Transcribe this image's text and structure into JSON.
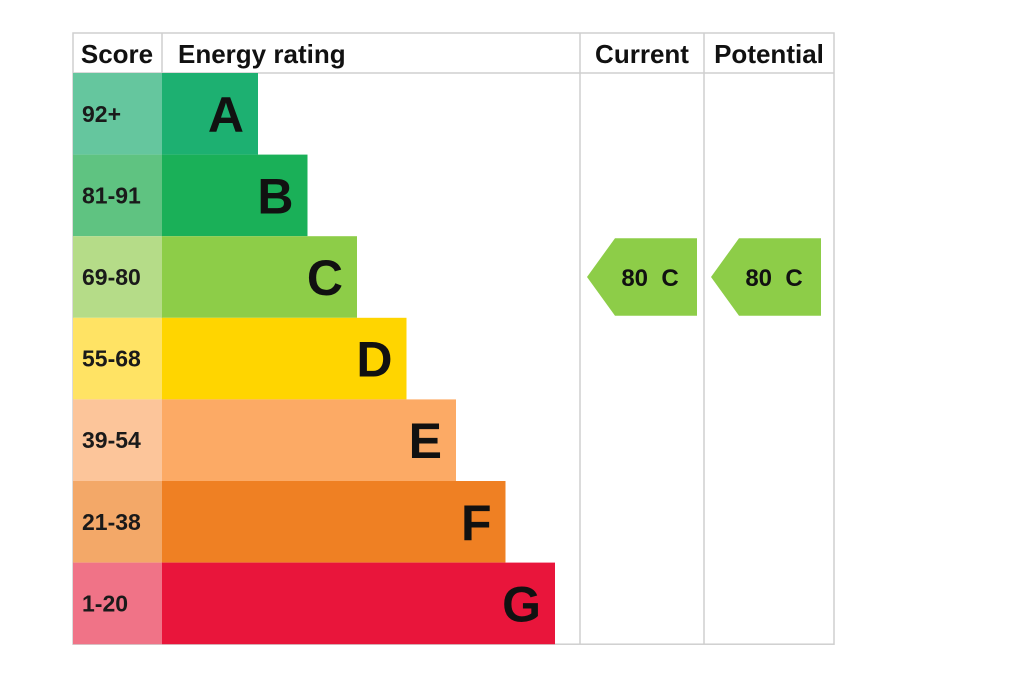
{
  "headers": {
    "score": "Score",
    "energy_rating": "Energy rating",
    "current": "Current",
    "potential": "Potential"
  },
  "chart_data": {
    "type": "bar",
    "title": "",
    "bands": [
      {
        "score": "92+",
        "letter": "A",
        "color": "#1db071",
        "score_color": "#65c69e",
        "scale": 1
      },
      {
        "score": "81-91",
        "letter": "B",
        "color": "#1ab058",
        "score_color": "#5fc381",
        "scale": 2
      },
      {
        "score": "69-80",
        "letter": "C",
        "color": "#8dcd48",
        "score_color": "#b5dc88",
        "scale": 3
      },
      {
        "score": "55-68",
        "letter": "D",
        "color": "#ffd500",
        "score_color": "#ffe364",
        "scale": 4
      },
      {
        "score": "39-54",
        "letter": "E",
        "color": "#fcaa65",
        "score_color": "#fcc59a",
        "scale": 5
      },
      {
        "score": "21-38",
        "letter": "F",
        "color": "#ef8023",
        "score_color": "#f3a868",
        "scale": 6
      },
      {
        "score": "1-20",
        "letter": "G",
        "color": "#e9153b",
        "score_color": "#f07387",
        "scale": 7
      }
    ],
    "current": {
      "value": 80,
      "band": "C",
      "label": "80  C",
      "color": "#8dcd48"
    },
    "potential": {
      "value": 80,
      "band": "C",
      "label": "80  C",
      "color": "#8dcd48"
    }
  }
}
